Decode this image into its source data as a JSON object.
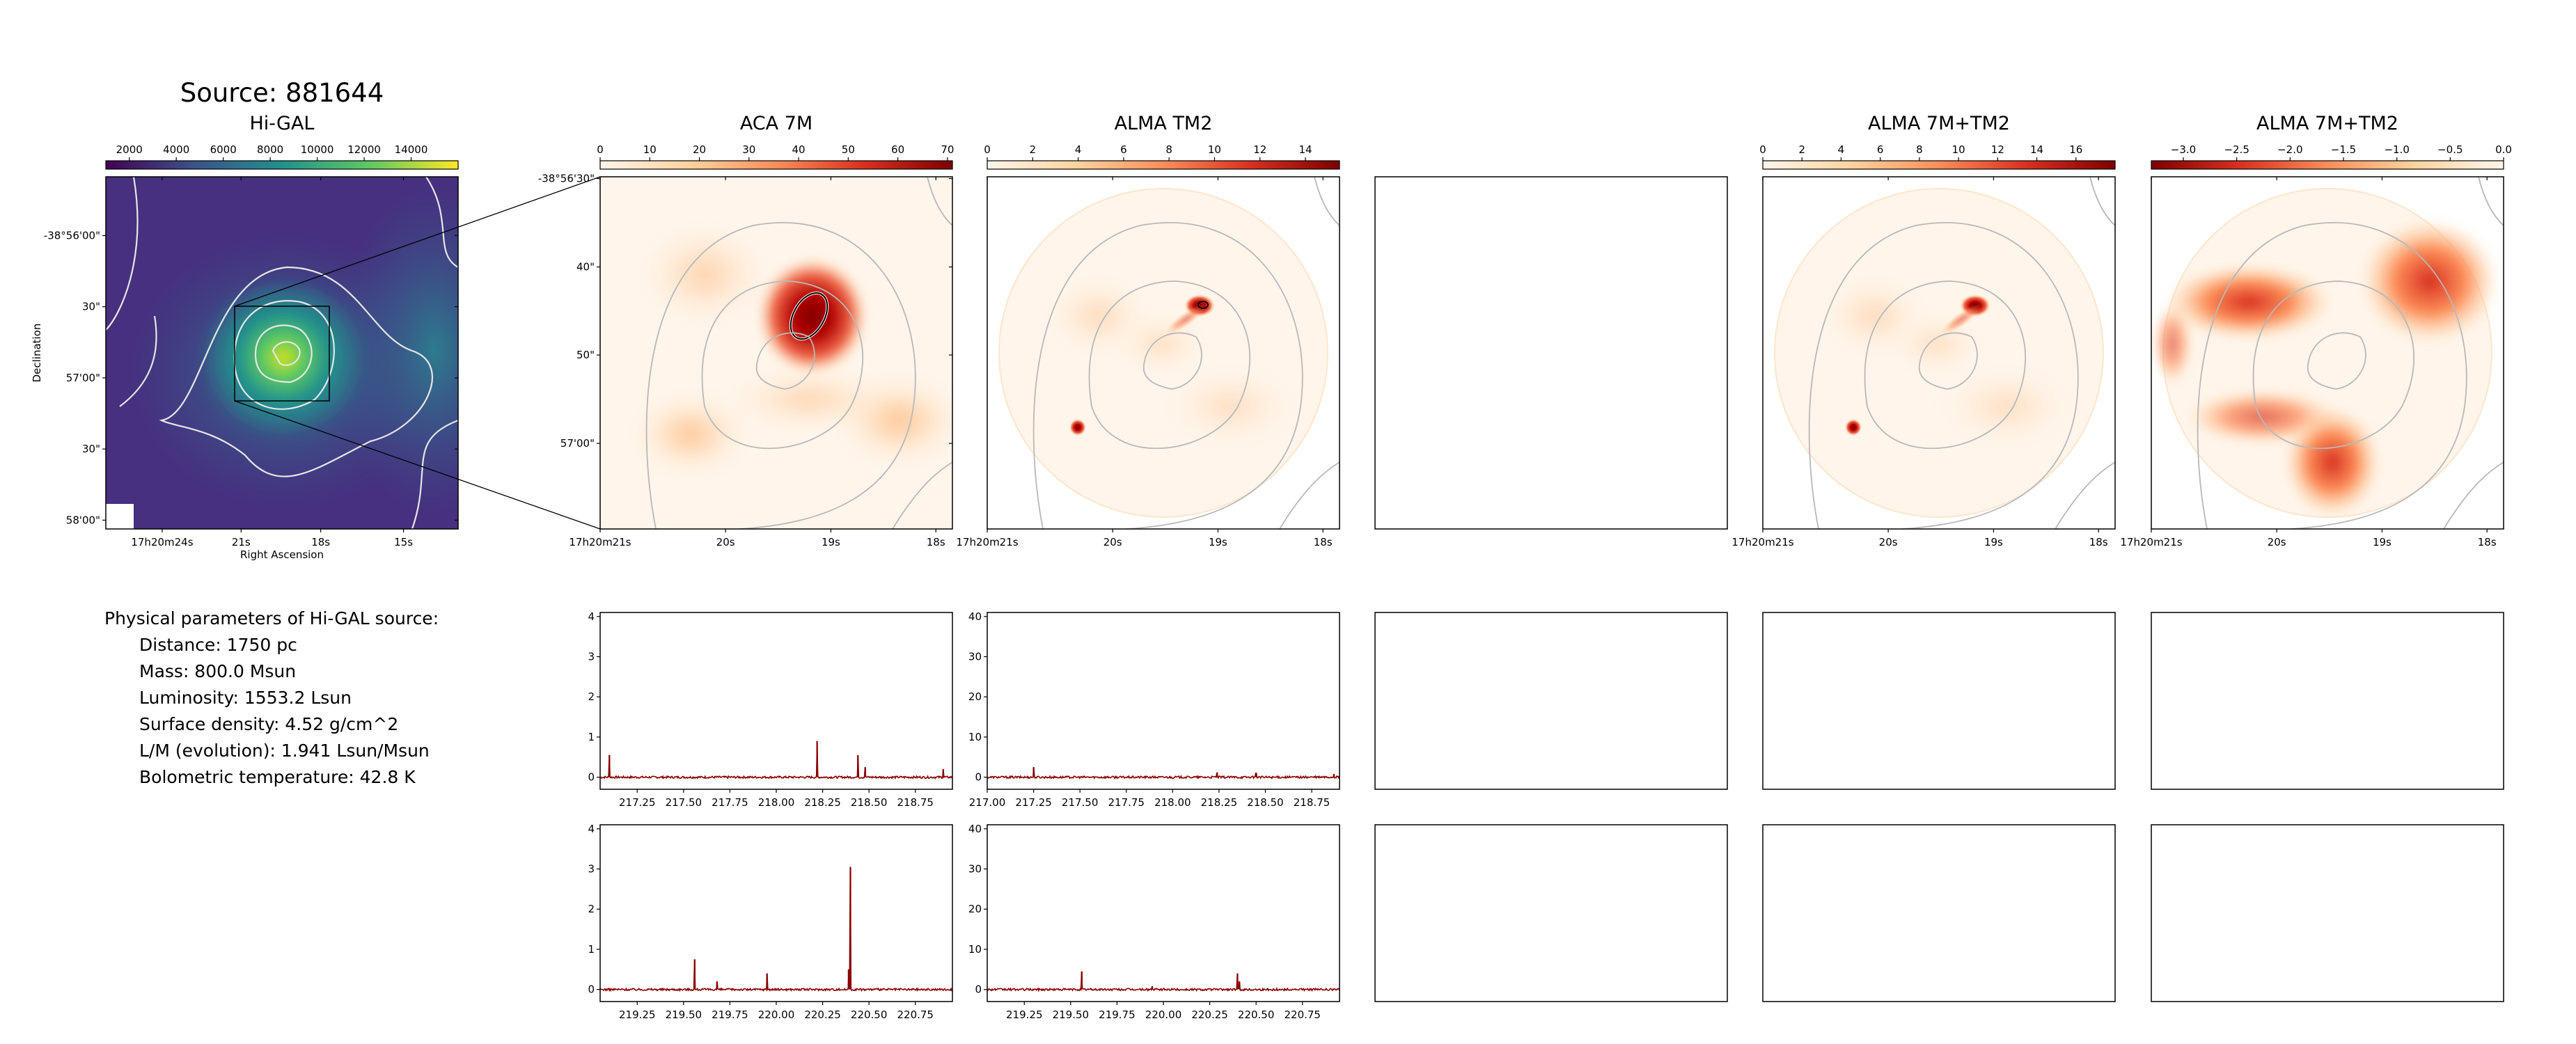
{
  "title": "Source: 881644",
  "colors": {
    "viridis": [
      "#440154",
      "#3b528b",
      "#21918c",
      "#5ec962",
      "#fde725"
    ],
    "orrd": [
      "#fff5eb",
      "#fdd49e",
      "#fc8d59",
      "#d7301f",
      "#7f0000"
    ],
    "spectrum": "#8b0000"
  },
  "higal": {
    "title": "Hi-GAL",
    "colorbar": {
      "range": [
        1000,
        16000
      ],
      "ticks": [
        2000,
        4000,
        6000,
        8000,
        10000,
        12000,
        14000
      ]
    },
    "yticks": [
      "-38°56'00\"",
      "30\"",
      "57'00\"",
      "30\"",
      "58'00\""
    ],
    "xticks": [
      "17h20m24s",
      "21s",
      "18s",
      "15s"
    ],
    "xlabel": "Right Ascension",
    "ylabel": "Declination"
  },
  "panels": [
    {
      "id": "aca7m",
      "title": "ACA 7M",
      "colorbar": {
        "range": [
          0,
          71
        ],
        "ticks": [
          0,
          10,
          20,
          30,
          40,
          50,
          60,
          70
        ]
      },
      "yticks": [
        "-38°56'30\"",
        "40\"",
        "50\"",
        "57'00\""
      ],
      "xticks": [
        "17h20m21s",
        "20s",
        "19s",
        "18s"
      ]
    },
    {
      "id": "tm2",
      "title": "ALMA TM2",
      "colorbar": {
        "range": [
          0,
          15.5
        ],
        "ticks": [
          0,
          2,
          4,
          6,
          8,
          10,
          12,
          14
        ]
      },
      "xticks": [
        "17h20m21s",
        "20s",
        "19s",
        "18s"
      ]
    },
    {
      "id": "empty",
      "title": ""
    },
    {
      "id": "combo",
      "title": "ALMA 7M+TM2",
      "colorbar": {
        "range": [
          0,
          18
        ],
        "ticks": [
          0,
          2,
          4,
          6,
          8,
          10,
          12,
          14,
          16
        ]
      },
      "xticks": [
        "17h20m21s",
        "20s",
        "19s",
        "18s"
      ]
    },
    {
      "id": "ratio",
      "title": "ALMA 7M+TM2",
      "colorbar": {
        "range": [
          -3.3,
          0
        ],
        "ticks": [
          "−3.0",
          "−2.5",
          "−2.0",
          "−1.5",
          "−1.0",
          "−0.5",
          "0.0"
        ],
        "tickvals": [
          -3.0,
          -2.5,
          -2.0,
          -1.5,
          -1.0,
          -0.5,
          0.0
        ]
      },
      "xticks": [
        "17h20m21s",
        "20s",
        "19s",
        "18s"
      ]
    }
  ],
  "params": {
    "heading": "Physical parameters of Hi-GAL source:",
    "rows": [
      "Distance: 1750 pc",
      "Mass: 800.0 Msun",
      "Luminosity: 1553.2 Lsun",
      "Surface density: 4.52 g/cm^2",
      "L/M (evolution): 1.941 Lsun/Msun",
      "Bolometric temperature: 42.8 K"
    ]
  },
  "chart_data": [
    {
      "type": "line",
      "panel": "spectrum-aca7m-1",
      "xlim": [
        217.05,
        218.95
      ],
      "ylim": [
        -0.3,
        4.1
      ],
      "xticks": [
        "217.25",
        "217.50",
        "217.75",
        "218.00",
        "218.25",
        "218.50",
        "218.75"
      ],
      "xtickvals": [
        217.25,
        217.5,
        217.75,
        218.0,
        218.25,
        218.5,
        218.75
      ],
      "yticks": [
        0,
        1,
        2,
        3,
        4
      ],
      "peaks": [
        [
          217.1,
          0.55
        ],
        [
          218.22,
          0.9
        ],
        [
          218.44,
          0.55
        ],
        [
          218.48,
          0.25
        ],
        [
          218.9,
          0.2
        ]
      ]
    },
    {
      "type": "line",
      "panel": "spectrum-tm2-1",
      "xlim": [
        217.0,
        218.9
      ],
      "ylim": [
        -3,
        41
      ],
      "xticks": [
        "217.00",
        "217.25",
        "217.50",
        "217.75",
        "218.00",
        "218.25",
        "218.50",
        "218.75"
      ],
      "xtickvals": [
        217.0,
        217.25,
        217.5,
        217.75,
        218.0,
        218.25,
        218.5,
        218.75
      ],
      "yticks": [
        0,
        10,
        20,
        30,
        40
      ],
      "peaks": [
        [
          217.25,
          2.5
        ],
        [
          218.24,
          1.2
        ],
        [
          218.45,
          1.0
        ],
        [
          218.87,
          0.8
        ]
      ]
    },
    {
      "type": "line",
      "panel": "spectrum-aca7m-2",
      "xlim": [
        219.05,
        220.95
      ],
      "ylim": [
        -0.3,
        4.1
      ],
      "xticks": [
        "219.25",
        "219.50",
        "219.75",
        "220.00",
        "220.25",
        "220.50",
        "220.75"
      ],
      "xtickvals": [
        219.25,
        219.5,
        219.75,
        220.0,
        220.25,
        220.5,
        220.75
      ],
      "yticks": [
        0,
        1,
        2,
        3,
        4
      ],
      "peaks": [
        [
          219.56,
          0.75
        ],
        [
          219.68,
          0.2
        ],
        [
          219.95,
          0.4
        ],
        [
          220.4,
          3.05
        ],
        [
          220.39,
          0.5
        ]
      ]
    },
    {
      "type": "line",
      "panel": "spectrum-tm2-2",
      "xlim": [
        219.05,
        220.95
      ],
      "ylim": [
        -3,
        41
      ],
      "xticks": [
        "219.25",
        "219.50",
        "219.75",
        "220.00",
        "220.25",
        "220.50",
        "220.75"
      ],
      "xtickvals": [
        219.25,
        219.5,
        219.75,
        220.0,
        220.25,
        220.5,
        220.75
      ],
      "yticks": [
        0,
        10,
        20,
        30,
        40
      ],
      "peaks": [
        [
          219.56,
          4.5
        ],
        [
          219.94,
          0.8
        ],
        [
          220.4,
          4.0
        ],
        [
          220.41,
          2.0
        ]
      ]
    }
  ]
}
